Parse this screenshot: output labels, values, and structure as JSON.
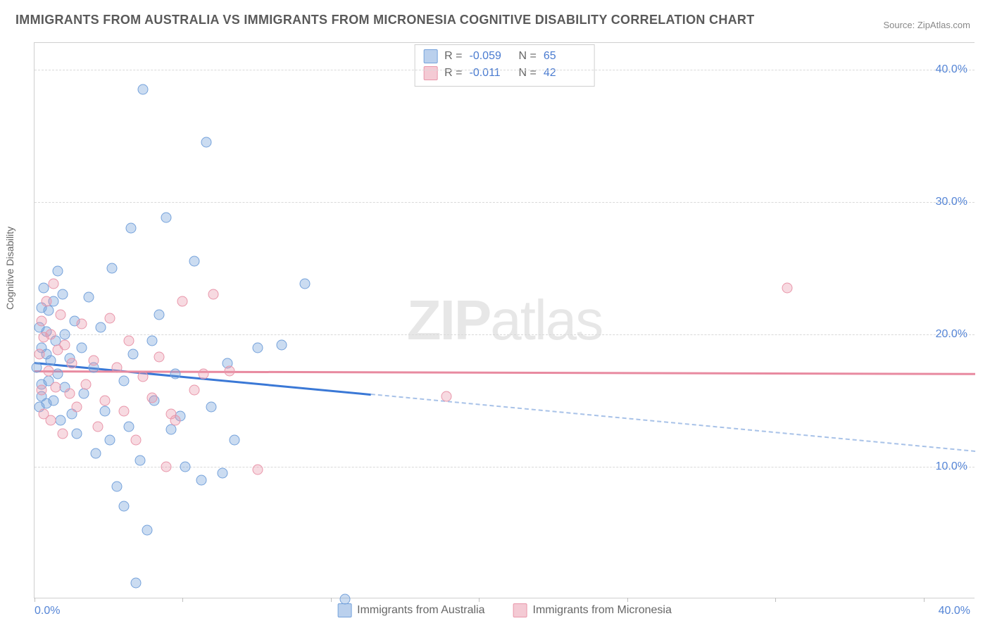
{
  "title": "IMMIGRANTS FROM AUSTRALIA VS IMMIGRANTS FROM MICRONESIA COGNITIVE DISABILITY CORRELATION CHART",
  "source_prefix": "Source: ",
  "source_name": "ZipAtlas.com",
  "ylabel": "Cognitive Disability",
  "watermark_bold": "ZIP",
  "watermark_rest": "atlas",
  "chart": {
    "type": "scatter",
    "xlim": [
      0,
      40
    ],
    "ylim": [
      0,
      42
    ],
    "yticks": [
      10,
      20,
      30,
      40
    ],
    "ytick_labels": [
      "10.0%",
      "20.0%",
      "30.0%",
      "40.0%"
    ],
    "xtick_positions": [
      0,
      6.3,
      12.6,
      18.9,
      25.2,
      31.5,
      37.8
    ],
    "x_axis_label_left": "0.0%",
    "x_axis_label_right": "40.0%",
    "background_color": "#ffffff",
    "grid_color": "#d9d9d9",
    "axis_color": "#cfcfcf",
    "tick_label_color": "#5585d6",
    "title_color": "#5a5a5a",
    "title_fontsize": 18,
    "label_fontsize": 14,
    "tick_fontsize": 16,
    "marker_radius": 7.5,
    "series": [
      {
        "name": "Immigrants from Australia",
        "color_fill": "rgba(117,162,219,0.38)",
        "color_stroke": "#75a2db",
        "line_color": "#3a78d6",
        "dash_color": "#a8c2e8",
        "R": -0.059,
        "N": 65,
        "regression": {
          "x1": 0,
          "y1": 17.9,
          "x2": 40,
          "y2": 11.2,
          "solid_until_x": 14.3
        },
        "points": [
          [
            0.1,
            17.5
          ],
          [
            0.2,
            14.5
          ],
          [
            0.2,
            20.5
          ],
          [
            0.3,
            19.0
          ],
          [
            0.3,
            16.2
          ],
          [
            0.3,
            22.0
          ],
          [
            0.3,
            15.3
          ],
          [
            0.4,
            23.5
          ],
          [
            0.5,
            18.5
          ],
          [
            0.5,
            20.2
          ],
          [
            0.5,
            14.8
          ],
          [
            0.6,
            21.8
          ],
          [
            0.6,
            16.5
          ],
          [
            0.7,
            18.0
          ],
          [
            0.8,
            15.0
          ],
          [
            0.8,
            22.5
          ],
          [
            0.9,
            19.5
          ],
          [
            1.0,
            17.0
          ],
          [
            1.0,
            24.8
          ],
          [
            1.1,
            13.5
          ],
          [
            1.2,
            23.0
          ],
          [
            1.3,
            16.0
          ],
          [
            1.3,
            20.0
          ],
          [
            1.5,
            18.2
          ],
          [
            1.6,
            14.0
          ],
          [
            1.7,
            21.0
          ],
          [
            1.8,
            12.5
          ],
          [
            2.0,
            19.0
          ],
          [
            2.1,
            15.5
          ],
          [
            2.3,
            22.8
          ],
          [
            2.5,
            17.5
          ],
          [
            2.6,
            11.0
          ],
          [
            2.8,
            20.5
          ],
          [
            3.0,
            14.2
          ],
          [
            3.2,
            12.0
          ],
          [
            3.3,
            25.0
          ],
          [
            3.5,
            8.5
          ],
          [
            3.8,
            7.0
          ],
          [
            3.8,
            16.5
          ],
          [
            4.0,
            13.0
          ],
          [
            4.1,
            28.0
          ],
          [
            4.2,
            18.5
          ],
          [
            4.3,
            1.2
          ],
          [
            4.5,
            10.5
          ],
          [
            4.6,
            38.5
          ],
          [
            4.8,
            5.2
          ],
          [
            5.0,
            19.5
          ],
          [
            5.1,
            15.0
          ],
          [
            5.3,
            21.5
          ],
          [
            5.6,
            28.8
          ],
          [
            5.8,
            12.8
          ],
          [
            6.0,
            17.0
          ],
          [
            6.2,
            13.8
          ],
          [
            6.4,
            10.0
          ],
          [
            6.8,
            25.5
          ],
          [
            7.1,
            9.0
          ],
          [
            7.3,
            34.5
          ],
          [
            7.5,
            14.5
          ],
          [
            8.0,
            9.5
          ],
          [
            8.2,
            17.8
          ],
          [
            8.5,
            12.0
          ],
          [
            9.5,
            19.0
          ],
          [
            10.5,
            19.2
          ],
          [
            11.5,
            23.8
          ],
          [
            13.2,
            0.0
          ]
        ]
      },
      {
        "name": "Immigrants from Micronesia",
        "color_fill": "rgba(233,150,170,0.35)",
        "color_stroke": "#e996aa",
        "line_color": "#e88aa0",
        "R": -0.011,
        "N": 42,
        "regression": {
          "x1": 0,
          "y1": 17.3,
          "x2": 40,
          "y2": 17.1,
          "solid_until_x": 40
        },
        "points": [
          [
            0.2,
            18.5
          ],
          [
            0.3,
            21.0
          ],
          [
            0.3,
            15.8
          ],
          [
            0.4,
            19.8
          ],
          [
            0.4,
            14.0
          ],
          [
            0.5,
            22.5
          ],
          [
            0.6,
            17.2
          ],
          [
            0.7,
            20.0
          ],
          [
            0.7,
            13.5
          ],
          [
            0.8,
            23.8
          ],
          [
            0.9,
            16.0
          ],
          [
            1.0,
            18.8
          ],
          [
            1.1,
            21.5
          ],
          [
            1.2,
            12.5
          ],
          [
            1.3,
            19.2
          ],
          [
            1.5,
            15.5
          ],
          [
            1.6,
            17.8
          ],
          [
            1.8,
            14.5
          ],
          [
            2.0,
            20.8
          ],
          [
            2.2,
            16.2
          ],
          [
            2.5,
            18.0
          ],
          [
            2.7,
            13.0
          ],
          [
            3.0,
            15.0
          ],
          [
            3.2,
            21.2
          ],
          [
            3.5,
            17.5
          ],
          [
            3.8,
            14.2
          ],
          [
            4.0,
            19.5
          ],
          [
            4.3,
            12.0
          ],
          [
            4.6,
            16.8
          ],
          [
            5.0,
            15.2
          ],
          [
            5.3,
            18.3
          ],
          [
            5.6,
            10.0
          ],
          [
            5.8,
            14.0
          ],
          [
            6.0,
            13.5
          ],
          [
            6.3,
            22.5
          ],
          [
            6.8,
            15.8
          ],
          [
            7.2,
            17.0
          ],
          [
            7.6,
            23.0
          ],
          [
            8.3,
            17.2
          ],
          [
            9.5,
            9.8
          ],
          [
            17.5,
            15.3
          ],
          [
            32.0,
            23.5
          ]
        ]
      }
    ],
    "stat_box": {
      "rows": [
        {
          "swatch": "blue",
          "R_label": "R =",
          "R": "-0.059",
          "N_label": "N =",
          "N": "65"
        },
        {
          "swatch": "pink",
          "R_label": "R =",
          "R": "-0.011",
          "N_label": "N =",
          "N": "42"
        }
      ]
    },
    "legend_bottom": [
      {
        "swatch": "blue",
        "label": "Immigrants from Australia"
      },
      {
        "swatch": "pink",
        "label": "Immigrants from Micronesia"
      }
    ]
  }
}
